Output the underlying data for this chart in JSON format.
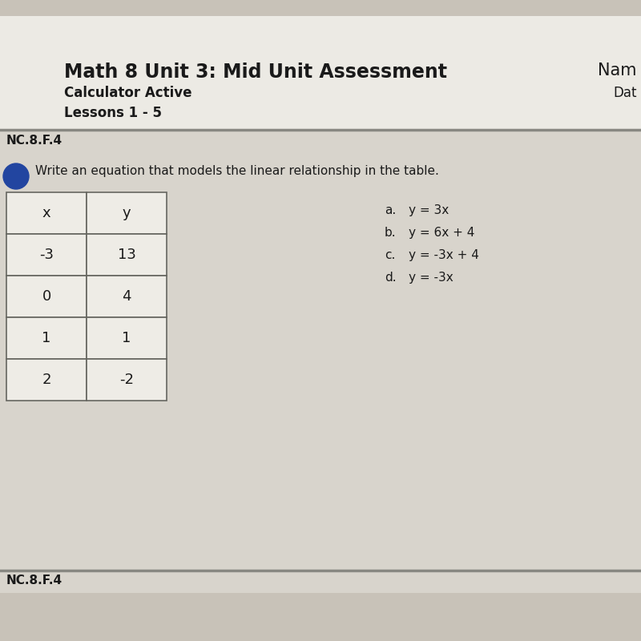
{
  "title": "Math 8 Unit 3: Mid Unit Assessment",
  "subtitle1": "Calculator Active",
  "subtitle2": "Lessons 1 - 5",
  "right_header1": "Nam",
  "right_header2": "Dat",
  "standard": "NC.8.F.4",
  "question": "Write an equation that models the linear relationship in the table.",
  "table_headers": [
    "x",
    "y"
  ],
  "table_data": [
    [
      "-3",
      "13"
    ],
    [
      "0",
      "4"
    ],
    [
      "1",
      "1"
    ],
    [
      "2",
      "-2"
    ]
  ],
  "choices": [
    [
      "a.",
      "y = 3x"
    ],
    [
      "b.",
      "y = 6x + 4"
    ],
    [
      "c.",
      "y = -3x + 4"
    ],
    [
      "d.",
      "y = -3x"
    ]
  ],
  "bottom_standard": "NC.8.F.4",
  "bg_color": "#c8c2b8",
  "paper_color": "#eceae4",
  "section_color": "#d8d4cc",
  "table_cell_color": "#eeece6",
  "table_border_color": "#666660",
  "divider_color": "#888882",
  "text_color": "#1a1a1a",
  "circle_color": "#2245a0",
  "title_fontsize": 17,
  "subtitle_fontsize": 12,
  "standard_fontsize": 11,
  "question_fontsize": 11,
  "table_fontsize": 13,
  "choice_fontsize": 11
}
